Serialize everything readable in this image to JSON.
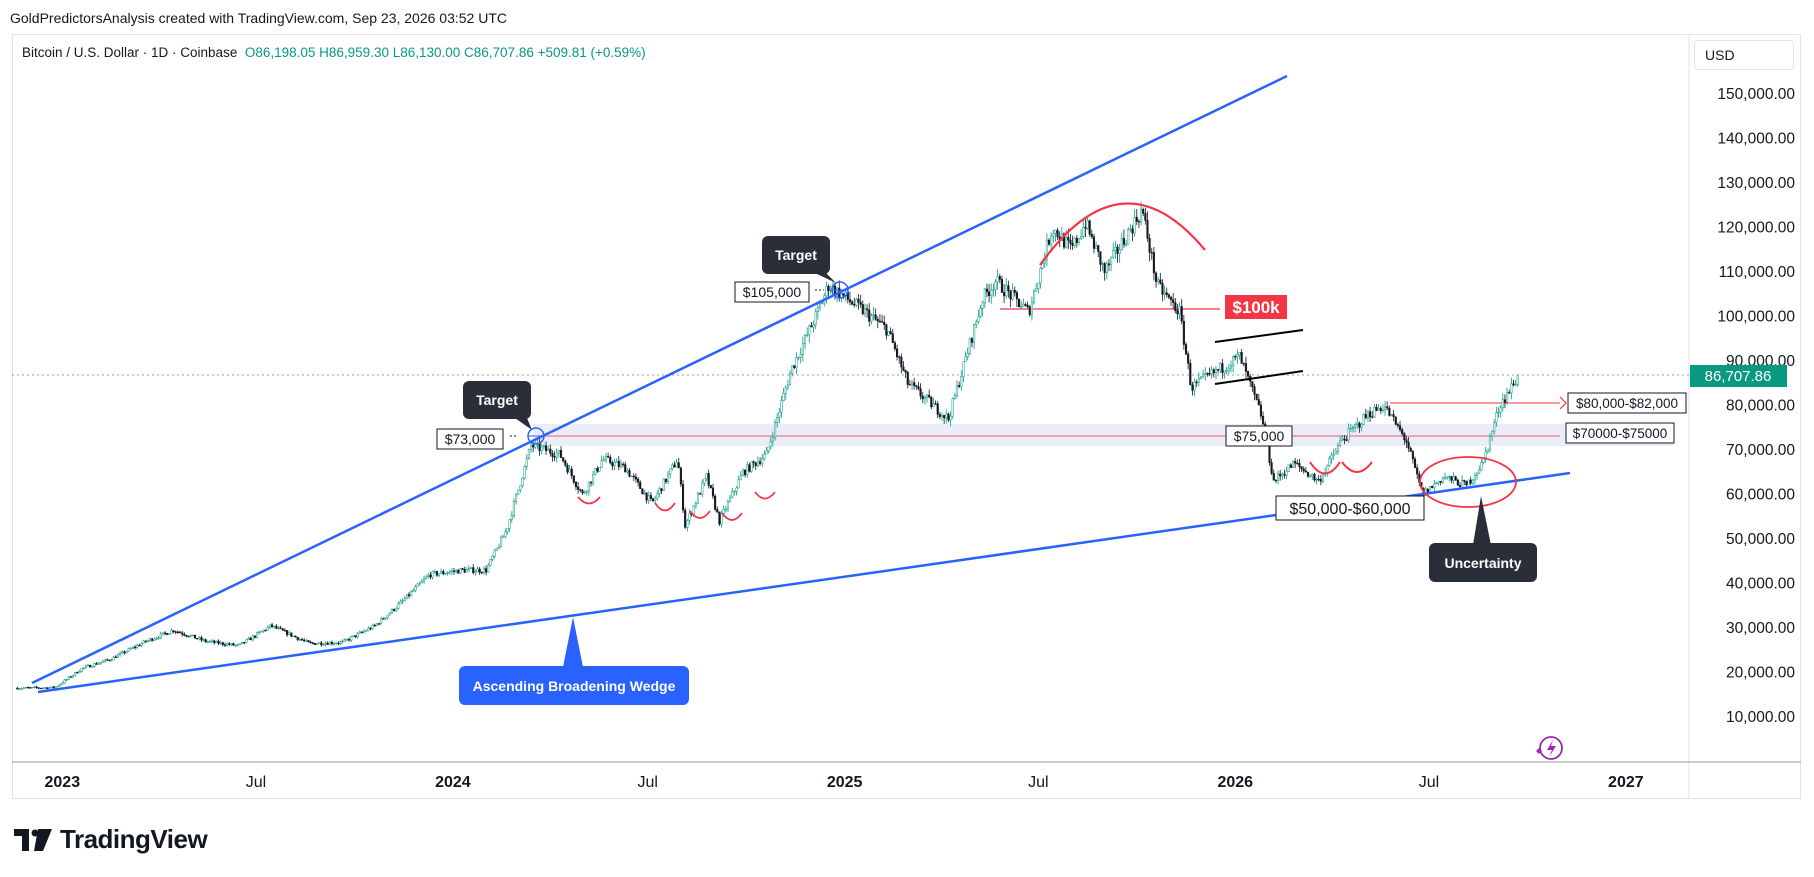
{
  "header": {
    "caption": "GoldPredictorsAnalysis created with TradingView.com, Sep 23, 2026 03:52 UTC"
  },
  "legend": {
    "symbol": "Bitcoin / U.S. Dollar · 1D · Coinbase",
    "ohlc": "O86,198.05  H86,959.30  L86,130.00  C86,707.86  +509.81 (+0.59%)"
  },
  "currency": "USD",
  "footer": {
    "brand": "TradingView"
  },
  "colors": {
    "wedge": "#2962ff",
    "up": "#089981",
    "down": "#131722",
    "red": "#f23645",
    "label_dark": "#2a2e39",
    "zone": "#e8eaf6"
  },
  "chart_data": {
    "type": "line",
    "title": "Bitcoin / U.S. Dollar · 1D · Coinbase",
    "xlabel": "",
    "ylabel": "USD",
    "x_ticks": [
      "2023",
      "Jul",
      "2024",
      "Jul",
      "2025",
      "Jul",
      "2026",
      "Jul",
      "2027"
    ],
    "y_ticks": [
      "150,000.00",
      "140,000.00",
      "130,000.00",
      "120,000.00",
      "110,000.00",
      "100,000.00",
      "90,000.00",
      "80,000.00",
      "70,000.00",
      "60,000.00",
      "50,000.00",
      "40,000.00",
      "30,000.00",
      "20,000.00",
      "10,000.00"
    ],
    "ylim": [
      0,
      160000
    ],
    "xlim": [
      "2022-11-15",
      "2027-03-01"
    ],
    "last_price": "86,707.86",
    "series": [
      {
        "name": "",
        "x": [
          "2022-11-20",
          "2022-12-25",
          "2023-01-20",
          "2023-02-15",
          "2023-03-20",
          "2023-04-15",
          "2023-05-15",
          "2023-06-15",
          "2023-07-15",
          "2023-08-20",
          "2023-09-20",
          "2023-10-20",
          "2023-11-15",
          "2023-12-10",
          "2024-01-10",
          "2024-02-01",
          "2024-02-20",
          "2024-03-14",
          "2024-04-10",
          "2024-05-01",
          "2024-05-20",
          "2024-06-10",
          "2024-07-05",
          "2024-07-29",
          "2024-08-05",
          "2024-08-25",
          "2024-09-06",
          "2024-09-28",
          "2024-10-20",
          "2024-11-12",
          "2024-12-05",
          "2024-12-17",
          "2025-01-20",
          "2025-02-10",
          "2025-03-01",
          "2025-04-08",
          "2025-05-10",
          "2025-05-22",
          "2025-06-22",
          "2025-07-14",
          "2025-08-01",
          "2025-08-14",
          "2025-09-01",
          "2025-10-06",
          "2025-10-20",
          "2025-11-10",
          "2025-11-21",
          "2025-12-10",
          "2026-01-05",
          "2026-01-25",
          "2026-02-06",
          "2026-02-25",
          "2026-03-20",
          "2026-04-10",
          "2026-05-05",
          "2026-05-20",
          "2026-06-10",
          "2026-06-25",
          "2026-07-15",
          "2026-08-05",
          "2026-08-20",
          "2026-09-05",
          "2026-09-23"
        ],
        "values": [
          16500,
          16600,
          21000,
          23000,
          27000,
          29500,
          27000,
          26000,
          30500,
          26500,
          26800,
          30500,
          36000,
          42000,
          43000,
          43000,
          52000,
          71000,
          69000,
          60000,
          68000,
          66000,
          58000,
          68000,
          53000,
          64000,
          54000,
          65000,
          69000,
          88000,
          100000,
          107000,
          101000,
          97000,
          85000,
          77000,
          104000,
          108000,
          101000,
          120000,
          115000,
          121000,
          110000,
          124000,
          107000,
          101000,
          84000,
          87000,
          91000,
          78000,
          63000,
          67000,
          63000,
          72000,
          78000,
          80000,
          72000,
          60000,
          64000,
          62000,
          67000,
          80000,
          86707.86
        ]
      }
    ],
    "trendlines": [
      {
        "name": "wedge-upper",
        "start": [
          "2022-11-20",
          18000
        ],
        "end": [
          "2025-10-15",
          154000
        ]
      },
      {
        "name": "wedge-lower",
        "start": [
          "2022-11-20",
          15000
        ],
        "end": [
          "2026-10-10",
          65000
        ]
      }
    ],
    "levels": [
      {
        "label": "$73,000",
        "value": 73000
      },
      {
        "label": "$105,000",
        "value": 105000
      },
      {
        "label": "$100k",
        "value": 101000
      },
      {
        "label": "$75,000",
        "value": 73500
      },
      {
        "label": "$80,000-$82,000",
        "value": 81000
      },
      {
        "label": "$70000-$75000",
        "value": 72500
      },
      {
        "label": "$50,000-$60,000",
        "value": 60000
      }
    ],
    "annotations": [
      "Target",
      "Target",
      "Ascending Broadening Wedge",
      "Uncertainty"
    ]
  },
  "annotations": {
    "target1": "Target",
    "target2": "Target",
    "wedge": "Ascending Broadening Wedge",
    "uncertainty": "Uncertainty",
    "level_73000": "$73,000",
    "level_105000": "$105,000",
    "level_100k": "$100k",
    "level_75000": "$75,000",
    "range_80_82": "$80,000-$82,000",
    "range_70_75": "$70000-$75000",
    "range_50_60": "$50,000-$60,000"
  }
}
